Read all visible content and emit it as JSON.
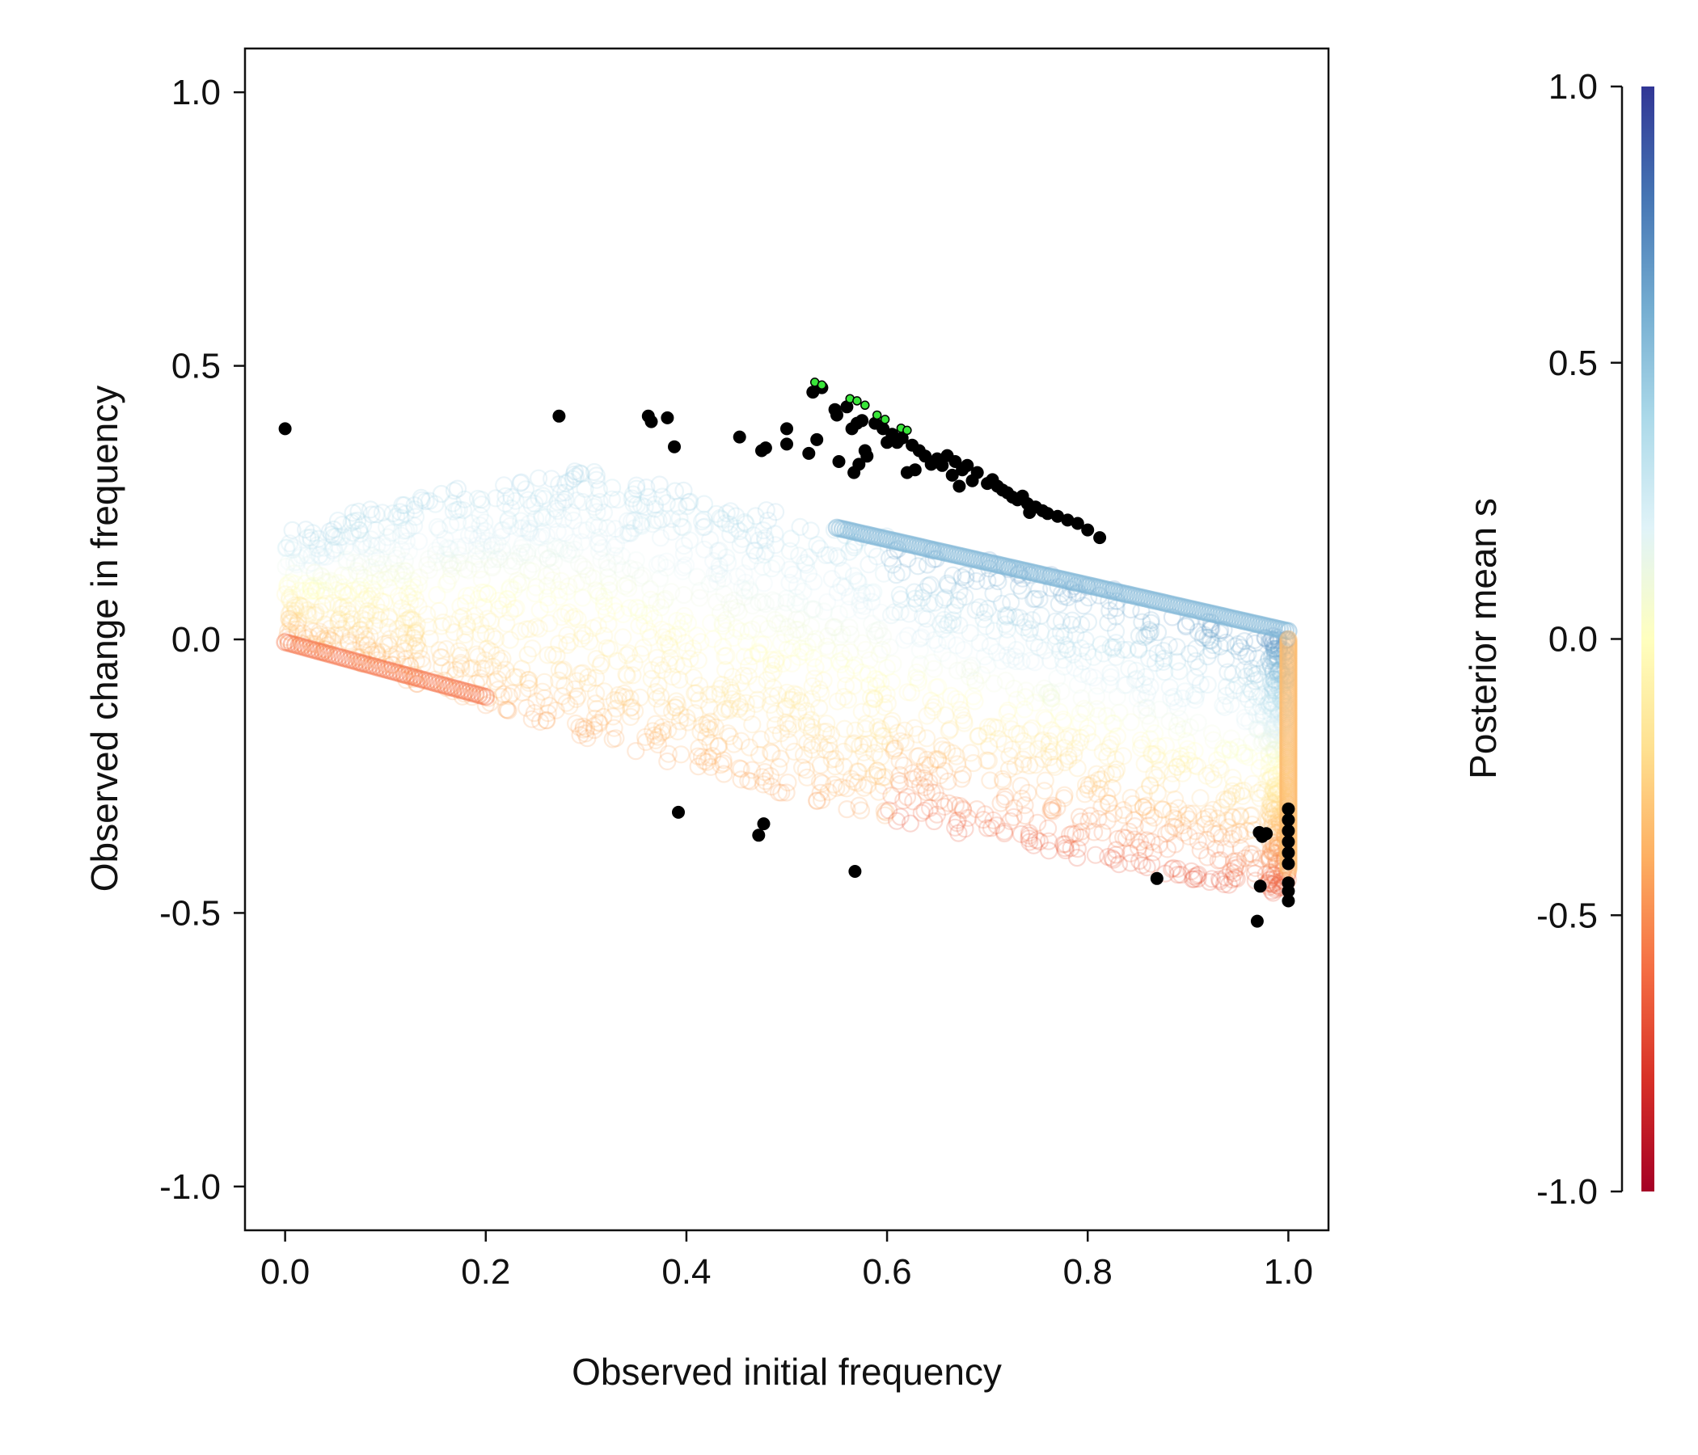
{
  "chart_data": {
    "type": "scatter",
    "title": "",
    "xlabel": "Observed initial frequency",
    "ylabel": "Observed change in frequency",
    "xlim": [
      -0.04,
      1.04
    ],
    "ylim": [
      -1.08,
      1.08
    ],
    "xticks": [
      "0.0",
      "0.2",
      "0.4",
      "0.6",
      "0.8",
      "1.0"
    ],
    "yticks": [
      "-1.0",
      "-0.5",
      "0.0",
      "0.5",
      "1.0"
    ],
    "grid": false,
    "colorbar": {
      "label": "Posterior mean s",
      "range": [
        -1.0,
        1.0
      ],
      "ticks": [
        "-1.0",
        "-0.5",
        "0.0",
        "0.5",
        "1.0"
      ],
      "colors": [
        "#a50026",
        "#d73027",
        "#f46d43",
        "#fdae61",
        "#fee090",
        "#ffffbf",
        "#e0f3f8",
        "#abd9e9",
        "#74add1",
        "#4575b4",
        "#313695"
      ]
    },
    "background_cloud": {
      "description_free": true,
      "x_range": [
        0,
        1
      ],
      "upper_bound_at_x0": 0.2,
      "upper_bound_at_x1": 0.0,
      "lower_bound_at_x0": 0.0,
      "lower_bound_at_x1": -0.45,
      "marker": "open-circle"
    },
    "series": [
      {
        "marker_color": "#000000",
        "points": [
          [
            0.0,
            0.385
          ],
          [
            0.273,
            0.408
          ],
          [
            0.362,
            0.408
          ],
          [
            0.365,
            0.398
          ],
          [
            0.381,
            0.405
          ],
          [
            0.388,
            0.352
          ],
          [
            0.453,
            0.37
          ],
          [
            0.475,
            0.345
          ],
          [
            0.479,
            0.35
          ],
          [
            0.5,
            0.385
          ],
          [
            0.5,
            0.357
          ],
          [
            0.522,
            0.34
          ],
          [
            0.526,
            0.452
          ],
          [
            0.53,
            0.365
          ],
          [
            0.535,
            0.46
          ],
          [
            0.548,
            0.42
          ],
          [
            0.55,
            0.41
          ],
          [
            0.552,
            0.325
          ],
          [
            0.56,
            0.425
          ],
          [
            0.565,
            0.385
          ],
          [
            0.567,
            0.305
          ],
          [
            0.57,
            0.395
          ],
          [
            0.572,
            0.32
          ],
          [
            0.575,
            0.4
          ],
          [
            0.578,
            0.345
          ],
          [
            0.58,
            0.335
          ],
          [
            0.588,
            0.395
          ],
          [
            0.596,
            0.385
          ],
          [
            0.6,
            0.36
          ],
          [
            0.605,
            0.375
          ],
          [
            0.61,
            0.36
          ],
          [
            0.615,
            0.368
          ],
          [
            0.62,
            0.305
          ],
          [
            0.625,
            0.355
          ],
          [
            0.628,
            0.31
          ],
          [
            0.632,
            0.345
          ],
          [
            0.638,
            0.335
          ],
          [
            0.644,
            0.32
          ],
          [
            0.65,
            0.33
          ],
          [
            0.655,
            0.318
          ],
          [
            0.66,
            0.336
          ],
          [
            0.665,
            0.3
          ],
          [
            0.668,
            0.325
          ],
          [
            0.672,
            0.28
          ],
          [
            0.675,
            0.31
          ],
          [
            0.68,
            0.318
          ],
          [
            0.685,
            0.29
          ],
          [
            0.69,
            0.305
          ],
          [
            0.7,
            0.285
          ],
          [
            0.705,
            0.292
          ],
          [
            0.71,
            0.28
          ],
          [
            0.715,
            0.273
          ],
          [
            0.72,
            0.268
          ],
          [
            0.725,
            0.26
          ],
          [
            0.73,
            0.255
          ],
          [
            0.735,
            0.262
          ],
          [
            0.74,
            0.248
          ],
          [
            0.742,
            0.232
          ],
          [
            0.748,
            0.242
          ],
          [
            0.755,
            0.235
          ],
          [
            0.76,
            0.23
          ],
          [
            0.77,
            0.225
          ],
          [
            0.78,
            0.218
          ],
          [
            0.79,
            0.212
          ],
          [
            0.8,
            0.2
          ],
          [
            0.812,
            0.186
          ],
          [
            0.392,
            -0.316
          ],
          [
            0.472,
            -0.358
          ],
          [
            0.477,
            -0.337
          ],
          [
            0.568,
            -0.424
          ],
          [
            0.869,
            -0.437
          ],
          [
            0.971,
            -0.353
          ],
          [
            0.974,
            -0.36
          ],
          [
            0.978,
            -0.355
          ],
          [
            0.972,
            -0.451
          ],
          [
            0.969,
            -0.515
          ],
          [
            1.0,
            -0.31
          ],
          [
            1.0,
            -0.33
          ],
          [
            1.0,
            -0.35
          ],
          [
            1.0,
            -0.37
          ],
          [
            1.0,
            -0.39
          ],
          [
            1.0,
            -0.41
          ],
          [
            1.0,
            -0.445
          ],
          [
            1.0,
            -0.46
          ],
          [
            1.0,
            -0.478
          ]
        ]
      },
      {
        "marker_color": "#39e639",
        "points": [
          [
            0.528,
            0.47
          ],
          [
            0.535,
            0.465
          ],
          [
            0.563,
            0.44
          ],
          [
            0.57,
            0.436
          ],
          [
            0.578,
            0.428
          ],
          [
            0.59,
            0.41
          ],
          [
            0.598,
            0.402
          ],
          [
            0.614,
            0.386
          ],
          [
            0.62,
            0.382
          ]
        ]
      }
    ]
  }
}
